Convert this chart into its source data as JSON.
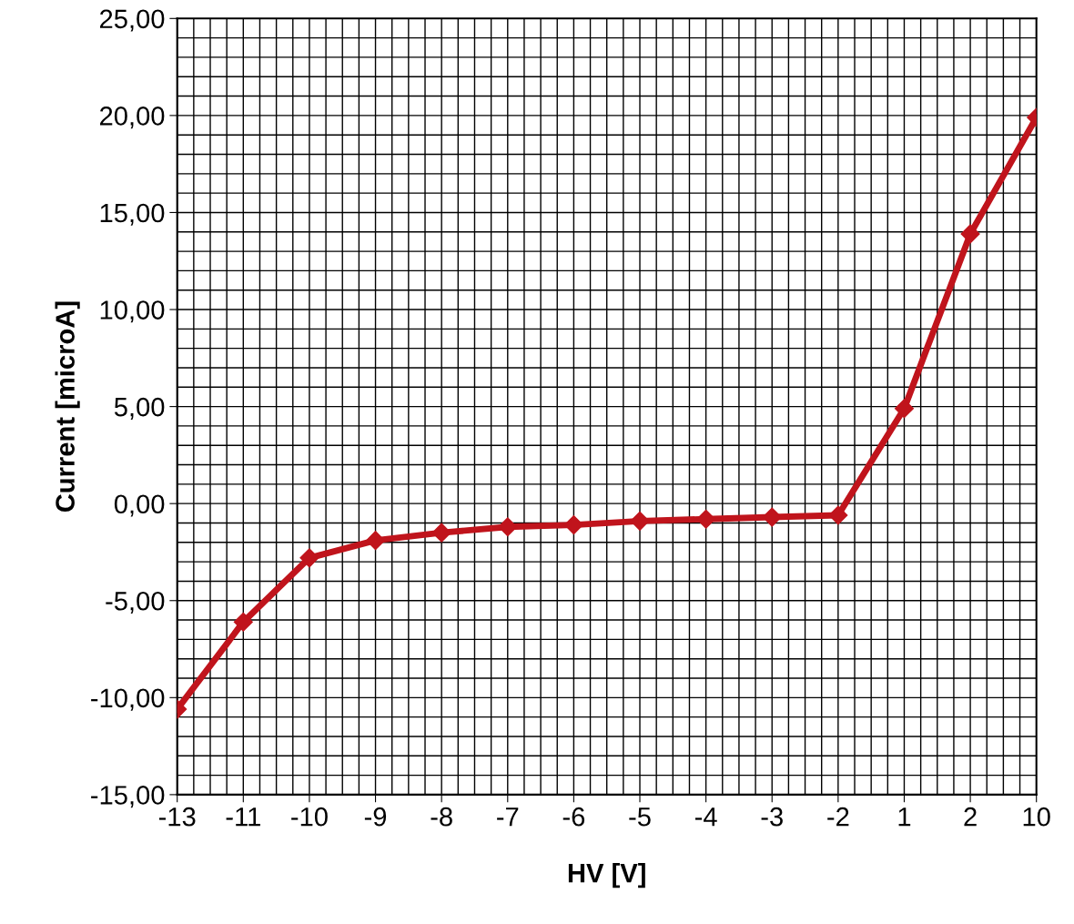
{
  "chart_data": {
    "type": "line",
    "xlabel": "HV [V]",
    "ylabel": "Current [microA]",
    "categories": [
      "-13",
      "-11",
      "-10",
      "-9",
      "-8",
      "-7",
      "-6",
      "-5",
      "-4",
      "-3",
      "-2",
      "1",
      "2",
      "10"
    ],
    "series": [
      {
        "color": "#c0141c",
        "values": [
          -10.6,
          -6.1,
          -2.8,
          -1.9,
          -1.5,
          -1.2,
          -1.1,
          -0.9,
          -0.8,
          -0.7,
          -0.6,
          4.9,
          13.9,
          19.9
        ]
      }
    ],
    "ylim": [
      -15,
      25
    ],
    "yticks": [
      {
        "value": -15,
        "label": "-15,00"
      },
      {
        "value": -10,
        "label": "-10,00"
      },
      {
        "value": -5,
        "label": "-5,00"
      },
      {
        "value": 0,
        "label": "0,00"
      },
      {
        "value": 5,
        "label": "5,00"
      },
      {
        "value": 10,
        "label": "10,00"
      },
      {
        "value": 15,
        "label": "15,00"
      },
      {
        "value": 20,
        "label": "20,00"
      },
      {
        "value": 25,
        "label": "25,00"
      }
    ],
    "grid": true,
    "marker": "diamond",
    "line_style": "solid"
  }
}
